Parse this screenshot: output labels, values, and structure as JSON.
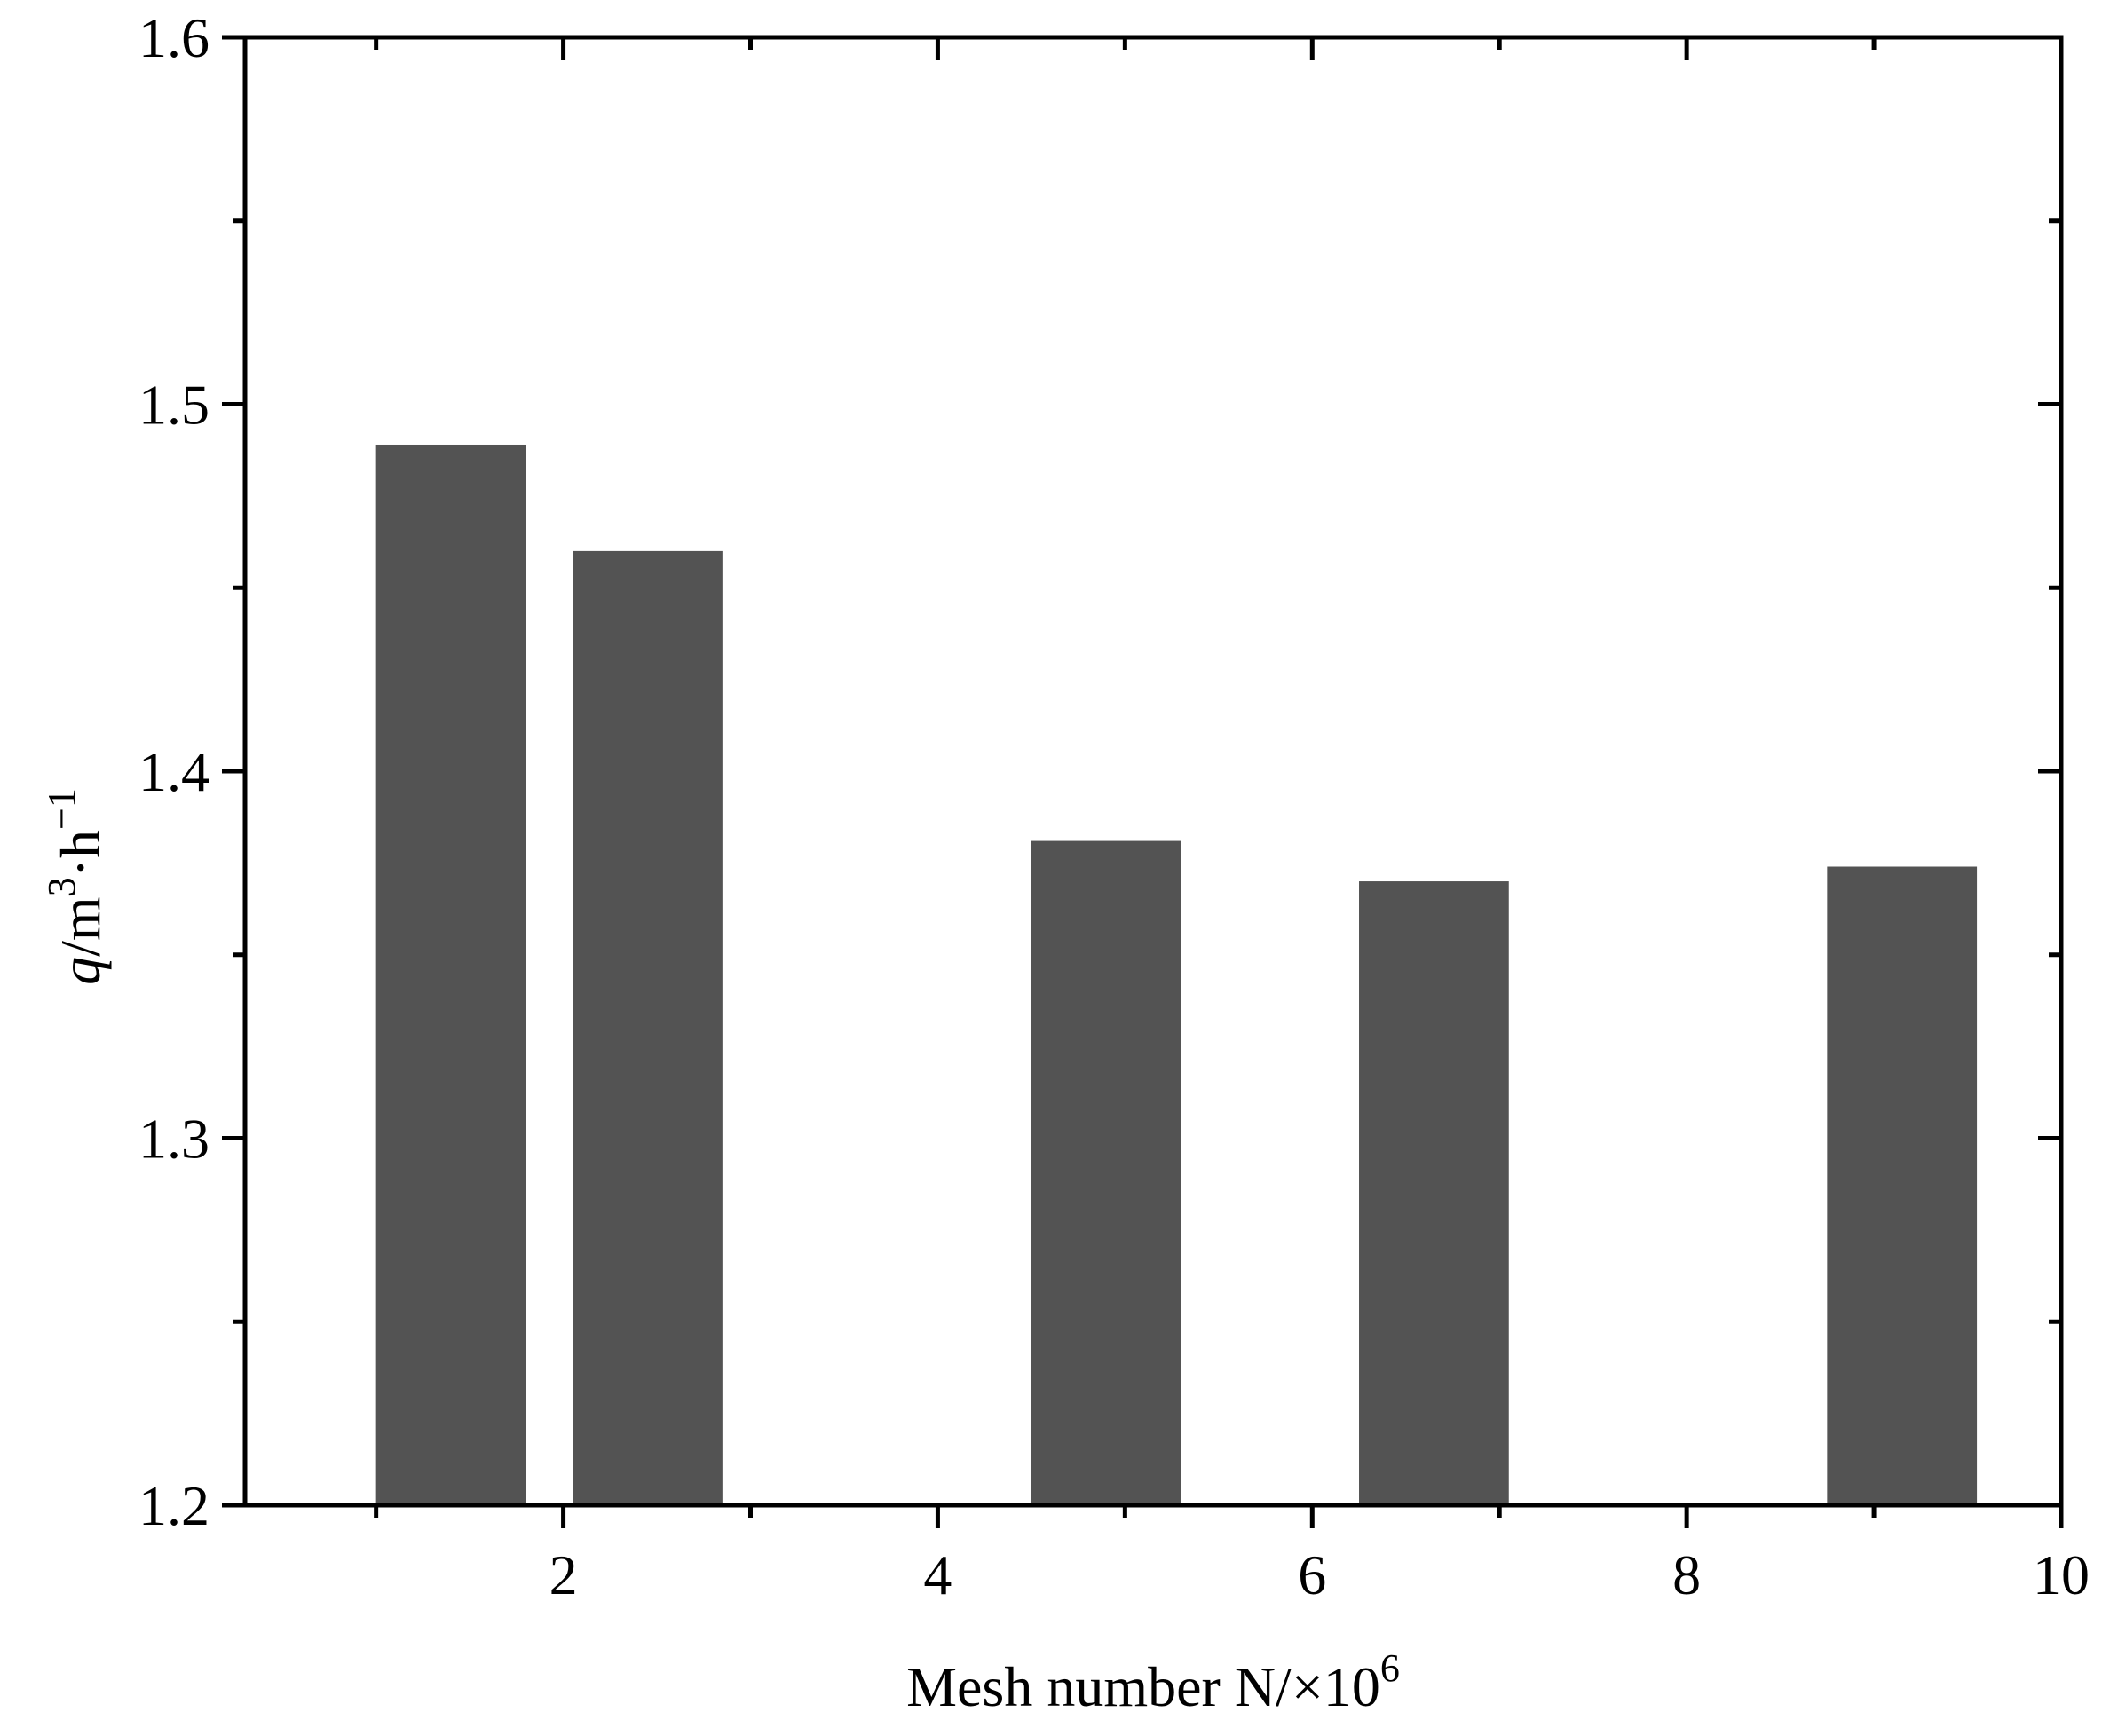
{
  "chart_data": {
    "type": "bar",
    "title": "",
    "x": [
      1.4,
      2.45,
      4.9,
      6.65,
      9.15
    ],
    "values": [
      1.489,
      1.46,
      1.381,
      1.37,
      1.374
    ],
    "bar_width": 0.8,
    "xlim": [
      0.3,
      10
    ],
    "ylim": [
      1.2,
      1.6
    ],
    "x_major_ticks": [
      2,
      4,
      6,
      8,
      10
    ],
    "x_minor_ticks": [
      1,
      3,
      5,
      7,
      9
    ],
    "y_major_ticks": [
      1.2,
      1.3,
      1.4,
      1.5,
      1.6
    ],
    "y_minor_ticks": [
      1.25,
      1.35,
      1.45,
      1.55
    ],
    "x_tick_labels": [
      "2",
      "4",
      "6",
      "8",
      "10"
    ],
    "y_tick_labels": [
      "1.2",
      "1.3",
      "1.4",
      "1.5",
      "1.6"
    ],
    "xlabel": {
      "main": "Mesh number N/×10",
      "sup": "6"
    },
    "ylabel": {
      "italic": "q",
      "unit_a": "/m",
      "sup_a": "3",
      "unit_b": "·h",
      "sup_b": "−1"
    },
    "grid": false,
    "legend": "none",
    "bar_color": "#535353",
    "axis_color": "#000000"
  }
}
